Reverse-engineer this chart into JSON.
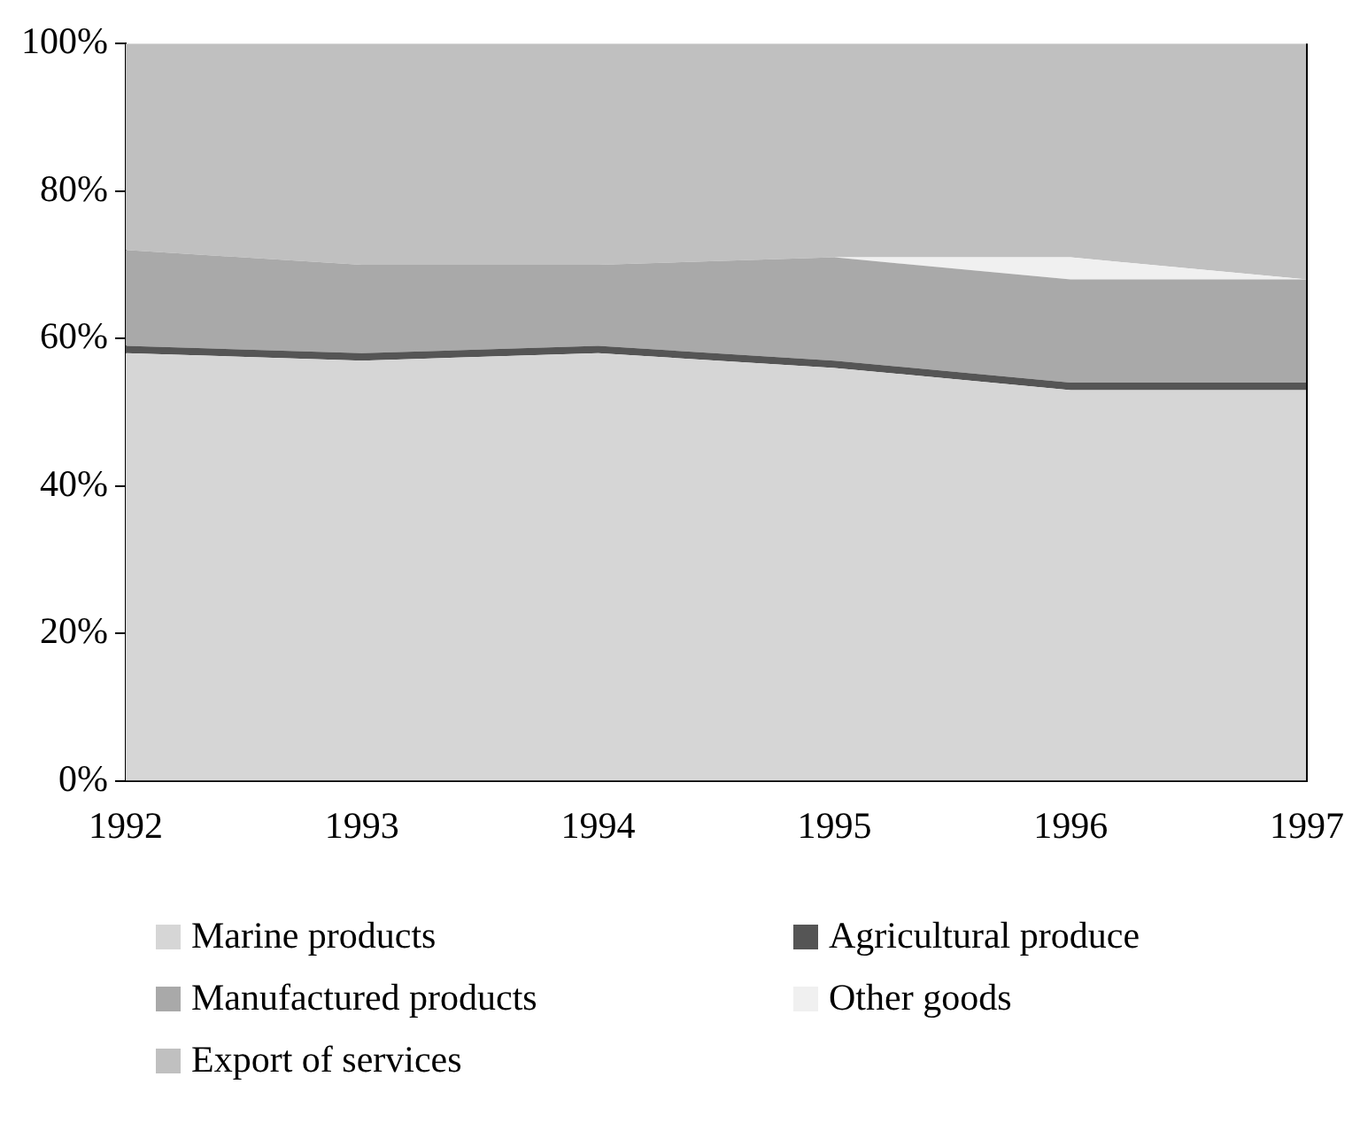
{
  "chart_data": {
    "type": "area",
    "stacked": true,
    "categories": [
      "1992",
      "1993",
      "1994",
      "1995",
      "1996",
      "1997"
    ],
    "series": [
      {
        "name": "Marine products",
        "color": "#d6d6d6",
        "values": [
          58,
          57,
          58,
          56,
          53,
          53
        ]
      },
      {
        "name": "Agricultural produce",
        "color": "#555555",
        "values": [
          1,
          1,
          1,
          1,
          1,
          1
        ]
      },
      {
        "name": "Manufactured products",
        "color": "#a9a9a9",
        "values": [
          13,
          12,
          11,
          14,
          14,
          14
        ]
      },
      {
        "name": "Other goods",
        "color": "#f0f0f0",
        "values": [
          0,
          0,
          0,
          0,
          3,
          0
        ]
      },
      {
        "name": "Export of services",
        "color": "#c0c0c0",
        "values": [
          28,
          30,
          30,
          29,
          29,
          32
        ]
      }
    ],
    "ylim": [
      0,
      100
    ],
    "yticks": [
      {
        "value": 0,
        "label": "0%"
      },
      {
        "value": 20,
        "label": "20%"
      },
      {
        "value": 40,
        "label": "40%"
      },
      {
        "value": 60,
        "label": "60%"
      },
      {
        "value": 80,
        "label": "80%"
      },
      {
        "value": 100,
        "label": "100%"
      }
    ],
    "grid": false,
    "legend": "bottom"
  }
}
